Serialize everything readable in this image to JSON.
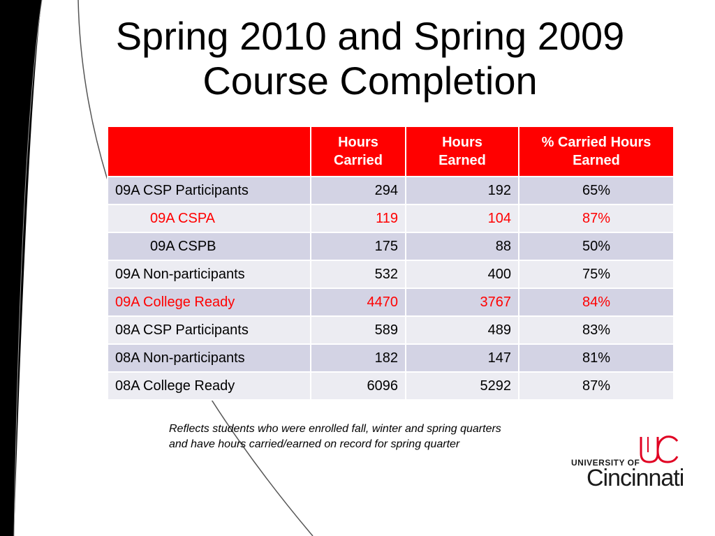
{
  "slide": {
    "title_line1": "Spring 2010 and Spring 2009",
    "title_line2": "Course Completion"
  },
  "table": {
    "headers": [
      "",
      "Hours\nCarried",
      "Hours\nEarned",
      "% Carried Hours\nEarned"
    ],
    "rows": [
      {
        "label": "09A CSP Participants",
        "carried": "294",
        "earned": "192",
        "pct": "65%"
      },
      {
        "label": "09A CSPA",
        "carried": "119",
        "earned": "104",
        "pct": "87%"
      },
      {
        "label": "09A CSPB",
        "carried": "175",
        "earned": "88",
        "pct": "50%"
      },
      {
        "label": "09A Non-participants",
        "carried": "532",
        "earned": "400",
        "pct": "75%"
      },
      {
        "label": "09A College Ready",
        "carried": "4470",
        "earned": "3767",
        "pct": "84%"
      },
      {
        "label": "08A CSP Participants",
        "carried": "589",
        "earned": "489",
        "pct": "83%"
      },
      {
        "label": "08A Non-participants",
        "carried": "182",
        "earned": "147",
        "pct": "81%"
      },
      {
        "label": "08A College Ready",
        "carried": "6096",
        "earned": "5292",
        "pct": "87%"
      }
    ]
  },
  "footnote": {
    "line1": "Reflects students who were enrolled fall, winter and spring quarters",
    "line2": "and have hours carried/earned on record for spring quarter"
  },
  "logo": {
    "university_of": "UNIVERSITY OF",
    "name": "Cincinnati"
  },
  "colors": {
    "header_red": "#ff0000",
    "highlight_red": "#ff0000",
    "row_dark": "#d3d3e4",
    "row_light": "#ececf2"
  }
}
